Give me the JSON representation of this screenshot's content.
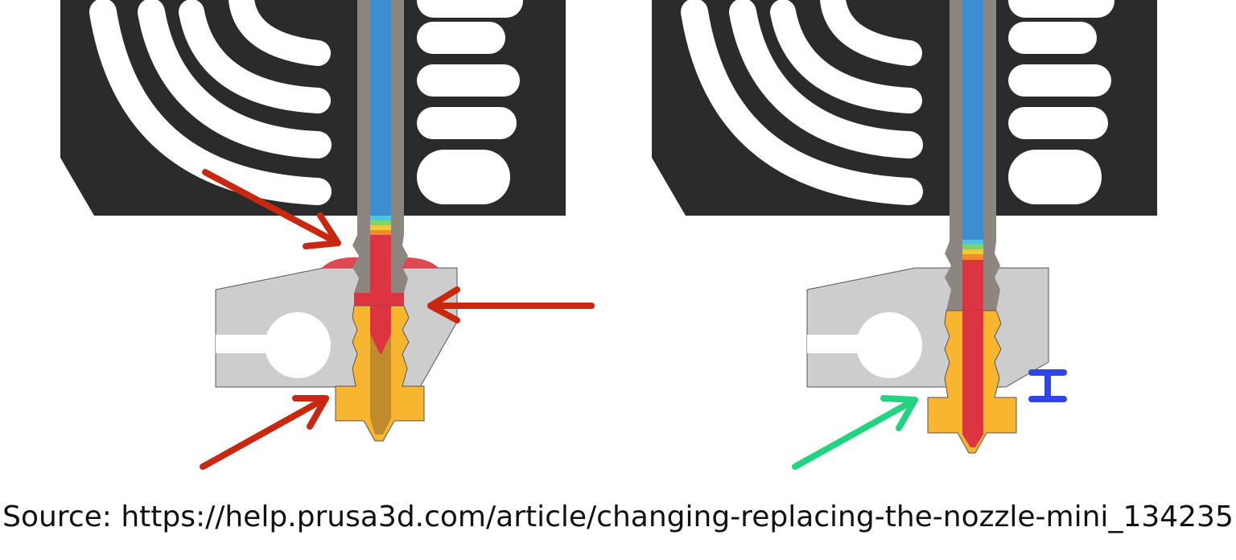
{
  "caption": "Source: https://help.prusa3d.com/article/changing-replacing-the-nozzle-mini_134235",
  "panels": [
    {
      "id": "incorrect",
      "heat_break_gap_visible": false,
      "arrow_color": "#c8280f",
      "arrow_count": 3
    },
    {
      "id": "correct",
      "heat_break_gap_visible": true,
      "arrow_color": "#22d47f",
      "arrow_count": 1,
      "gap_marker_color": "#2f46e6"
    }
  ],
  "colors": {
    "heatsink": "#2b2b2b",
    "heatsink_slots": "#ffffff",
    "heatbreak_tube": "#8c8580",
    "filament_cold": "#3b8fd0",
    "filament_melt": "#dc3541",
    "heater_block": "#cdcdcd",
    "nozzle": "#f7b530",
    "nozzle_inner_dark": "#c18a2c",
    "outline": "#555555"
  },
  "icons": [
    "heatsink-icon",
    "heater-block-icon",
    "nozzle-icon",
    "arrow-icon",
    "gap-marker-icon"
  ]
}
